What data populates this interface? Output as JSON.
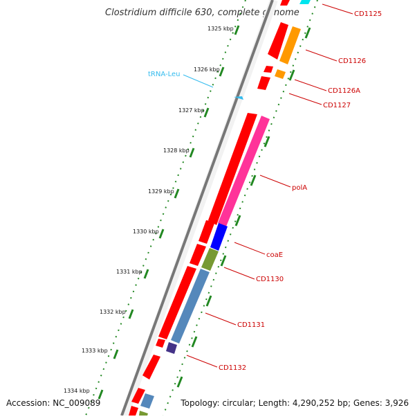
{
  "title": "Clostridium difficile 630, complete genome",
  "accession_text": "Accession: NC_009089",
  "summary_text": "Topology: circular; Length: 4,290,252 bp; Genes: 3,926",
  "tick_labels": [
    "1325 kbp",
    "1326 kbp",
    "1327 kbp",
    "1328 kbp",
    "1329 kbp",
    "1330 kbp",
    "1331 kbp",
    "1332 kbp",
    "1333 kbp",
    "1334 kbp"
  ],
  "gene_labels": [
    "CD1125",
    "CD1126",
    "CD1126A",
    "CD1127",
    "polA",
    "coaE",
    "CD1130",
    "CD1131",
    "CD1132"
  ],
  "trna_label": "tRNA-Leu",
  "colors": {
    "backbone": "#777777",
    "forward_gene": "#ff0000",
    "label_line": "#cc0000",
    "tick": "#228822",
    "trna": "#33bbee",
    "CD1125": "#00e5ee",
    "CD1126": "#ff9900",
    "polA": "#ff3399",
    "coaE": "#0000ff",
    "CD1130": "#779933",
    "CD1131": "#5588bb",
    "CD1132": "#443388"
  }
}
